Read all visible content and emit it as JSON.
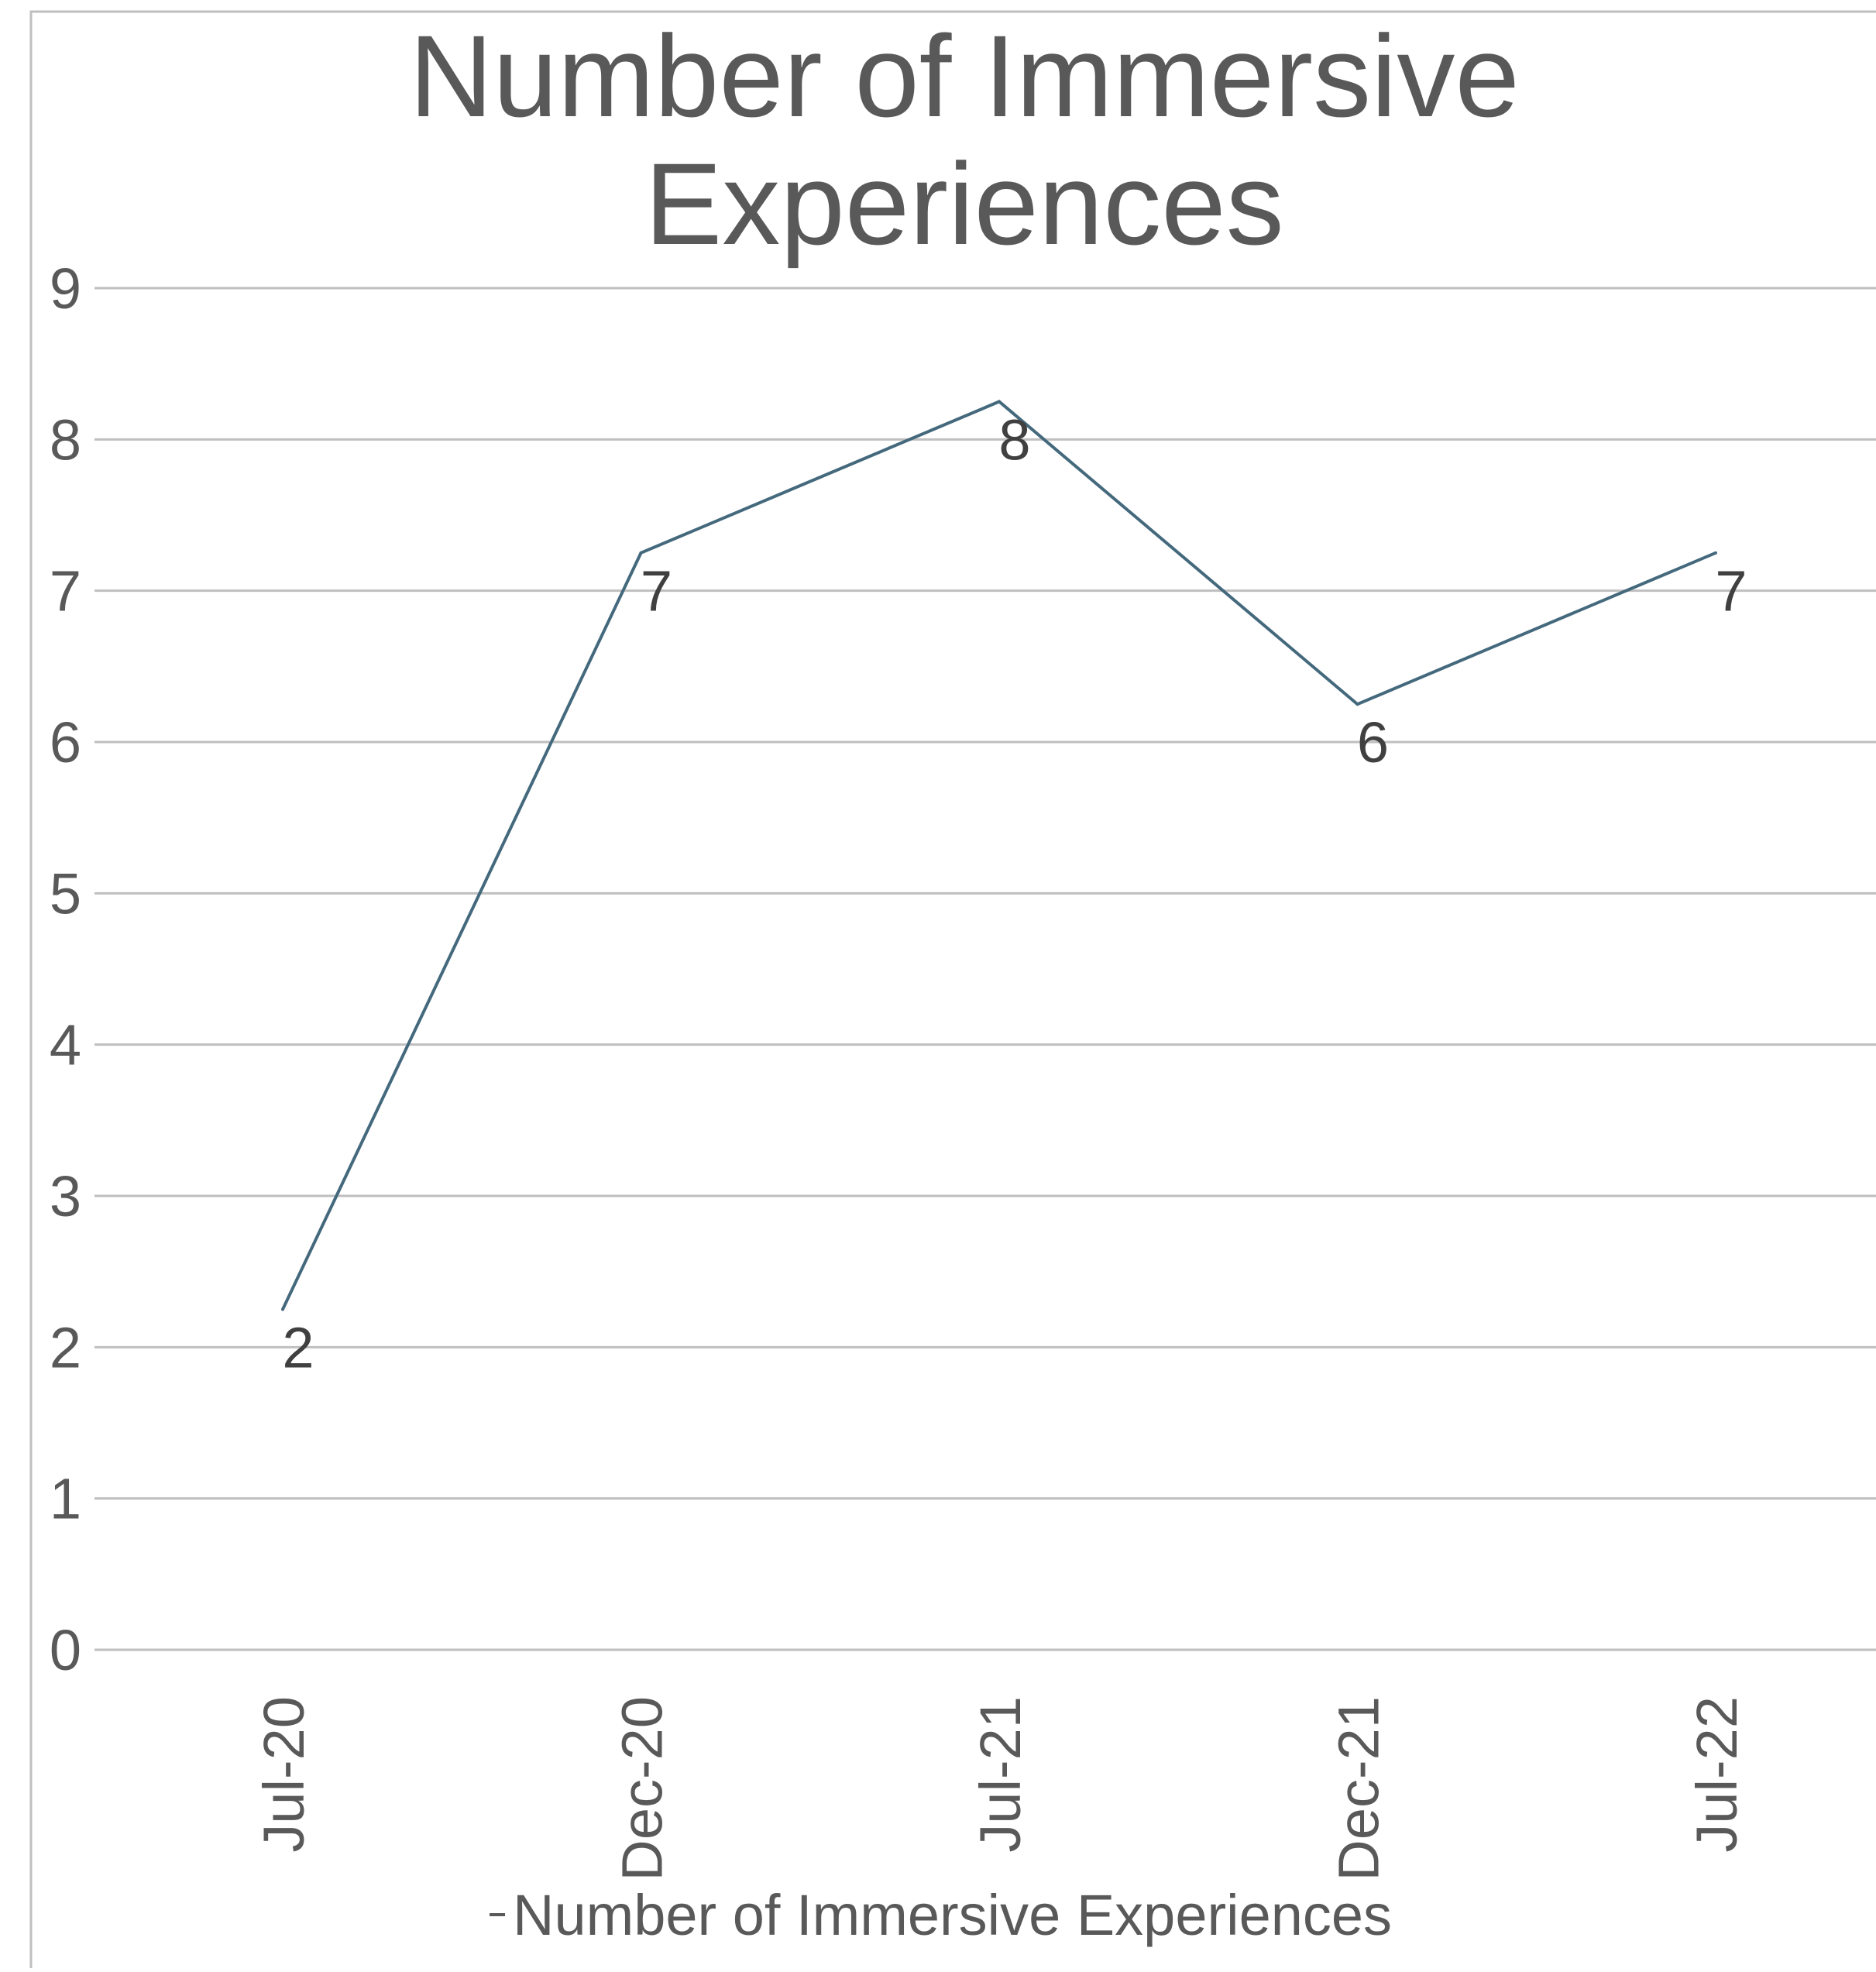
{
  "chart_data": {
    "type": "line",
    "title": "Number of Immersive Experiences",
    "title_lines": [
      "Number of Immersive",
      "Experiences"
    ],
    "categories": [
      "Jul-20",
      "Dec-20",
      "Jul-21",
      "Dec-21",
      "Jul-22"
    ],
    "series": [
      {
        "name": "Number of Immersive Experiences",
        "values": [
          2,
          7,
          8,
          6,
          7
        ],
        "color": "#44697d"
      }
    ],
    "data_labels": [
      "2",
      "7",
      "8",
      "6",
      "7"
    ],
    "xlabel": "",
    "ylabel": "",
    "ylim": [
      0,
      9
    ],
    "yticks": [
      "0",
      "1",
      "2",
      "3",
      "4",
      "5",
      "6",
      "7",
      "8",
      "9"
    ],
    "grid": true,
    "legend": {
      "position": "bottom",
      "entries": [
        "Number of Immersive Experiences"
      ]
    },
    "colors": {
      "text": "#595959",
      "gridline": "#bfbfbf",
      "frame": "#bfbfbf",
      "line": "#44697d",
      "data_label": "#404040"
    }
  }
}
